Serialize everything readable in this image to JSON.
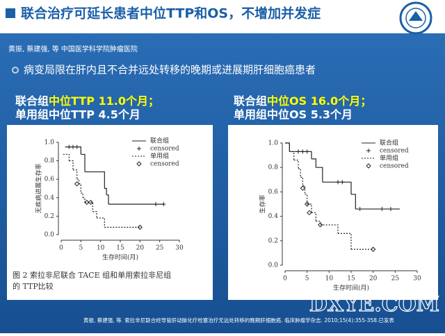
{
  "header": {
    "title": "联合治疗可延长患者中位TTP和OS，不增加并发症"
  },
  "authors": "黄振, 蔡建强, 等  中国医学科学院肿瘤医院",
  "bullet": "病变局限在肝内且不合并远处转移的晚期或进展期肝细胞癌患者",
  "highlight_color": "#ffff00",
  "left_headline": {
    "line1": [
      "联合组",
      "中位TTP 11.0个月；"
    ],
    "line2": "单用组中位TTP 4.5个月"
  },
  "right_headline": {
    "line1": [
      "联合组",
      "中位OS 16.0个月；"
    ],
    "line2": "单用组中位OS 5.3个月"
  },
  "footer": "黄振, 蔡建强, 等. 索拉非尼联合经导管肝动脉化疗栓塞治疗无远处转移的晚期肝细胞癌. 临床肿瘤学杂志. 2010;15(4):355-358.已发表",
  "watermark": "DXYE.COM",
  "chart_data": [
    {
      "type": "line",
      "step": true,
      "ylabel": "无疾病进展生存率",
      "xlabel": "生存时间(月)",
      "caption": [
        "图 2  索拉非尼联合 TACE 组和单用索拉非尼组",
        "的 TTP比较"
      ],
      "xlim": [
        0,
        30
      ],
      "xticks": [
        0,
        5,
        10,
        15,
        20,
        25,
        30
      ],
      "ylim": [
        0,
        1
      ],
      "yticks": [
        {
          "value": 0,
          "label": "0.0"
        },
        0.2,
        0.4,
        0.6,
        0.8,
        {
          "value": 1,
          "label": "1.0"
        }
      ],
      "series": [
        {
          "name": "联合组",
          "style": "solid",
          "x": [
            1,
            5,
            6,
            11,
            11.5,
            12,
            26
          ],
          "values": [
            0.95,
            0.87,
            0.68,
            0.5,
            0.43,
            0.33,
            0.33
          ]
        },
        {
          "name": "censored",
          "marker": "plus",
          "x": [
            2,
            3,
            4,
            24,
            26
          ],
          "values": [
            0.95,
            0.95,
            0.95,
            0.33,
            0.33
          ]
        },
        {
          "name": "单用组",
          "style": "dashed",
          "x": [
            0.5,
            2,
            3,
            4,
            4.5,
            5,
            5.5,
            6,
            8,
            9,
            11,
            20
          ],
          "values": [
            0.87,
            0.8,
            0.7,
            0.6,
            0.55,
            0.45,
            0.4,
            0.35,
            0.25,
            0.18,
            0.08,
            0.08
          ]
        },
        {
          "name": "censored",
          "marker": "diamond",
          "x": [
            4,
            6.5,
            7.5,
            20
          ],
          "values": [
            0.55,
            0.35,
            0.35,
            0.08
          ]
        }
      ]
    },
    {
      "type": "line",
      "step": true,
      "ylabel": "生存率",
      "xlabel": "生存时间(月)",
      "xlim": [
        0,
        30
      ],
      "xticks": [
        0,
        5,
        10,
        15,
        20,
        25,
        30
      ],
      "ylim": [
        0,
        1
      ],
      "yticks": [
        {
          "value": 0,
          "label": "0.0"
        },
        0.2,
        0.4,
        0.6,
        0.8,
        {
          "value": 1,
          "label": "1.0"
        }
      ],
      "series": [
        {
          "name": "联合组",
          "style": "solid",
          "x": [
            0,
            1,
            6,
            7,
            8.5,
            15,
            16,
            26
          ],
          "values": [
            1,
            0.93,
            0.87,
            0.8,
            0.68,
            0.58,
            0.46,
            0.46
          ]
        },
        {
          "name": "censored",
          "marker": "plus",
          "x": [
            3,
            4,
            5,
            12,
            13,
            17,
            22,
            24
          ],
          "values": [
            0.93,
            0.93,
            0.93,
            0.68,
            0.68,
            0.46,
            0.46,
            0.46
          ]
        },
        {
          "name": "单用组",
          "style": "dashed",
          "x": [
            0,
            1,
            2,
            3,
            3.5,
            4,
            4.5,
            5,
            6,
            7,
            8,
            12,
            15,
            20
          ],
          "values": [
            1,
            0.93,
            0.86,
            0.79,
            0.72,
            0.65,
            0.58,
            0.5,
            0.43,
            0.36,
            0.33,
            0.26,
            0.13,
            0.13
          ]
        },
        {
          "name": "censored",
          "marker": "diamond",
          "x": [
            4,
            5,
            5.5,
            8,
            20
          ],
          "values": [
            0.63,
            0.5,
            0.43,
            0.33,
            0.13
          ]
        }
      ]
    }
  ]
}
